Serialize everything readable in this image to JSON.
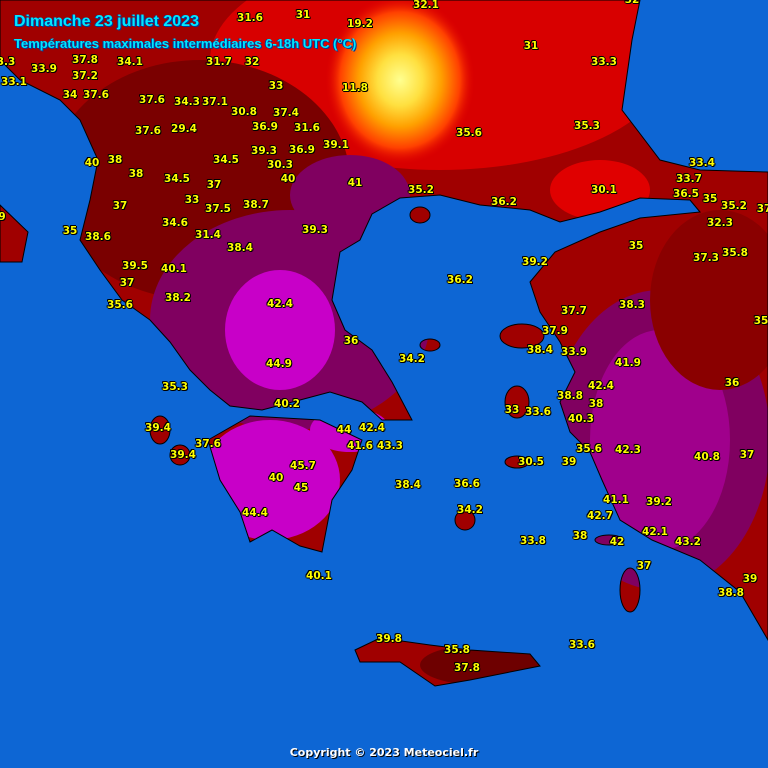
{
  "header": {
    "title": "Dimanche 23 juillet 2023",
    "subtitle": "Températures maximales intermédiaires 6-18h UTC (°C)"
  },
  "footer": {
    "copyright": "Copyright © 2023 Meteociel.fr"
  },
  "colors": {
    "sea": "#0d66d4",
    "land_base": "#a00000",
    "land_hot": "#6e0000",
    "very_hot": "#800060",
    "extreme": "#c800c8",
    "cooler_red": "#e00000",
    "cool_yellow": "#ffe040",
    "label_text": "#ffff00",
    "title_text": "#00e8ff"
  },
  "labels": [
    "31.6",
    "31",
    "19.2",
    "34.1",
    "3.3",
    "33.1",
    "32",
    "31.7",
    "33.9",
    "37.8",
    "37.2",
    "11.8",
    "33",
    "34",
    "37.6",
    "37.6",
    "34.3",
    "37.1",
    "30.8",
    "37.4",
    "36.9",
    "31.6",
    "37.6",
    "29.4",
    "39.1",
    "39.3",
    "36.9",
    "34.5",
    "30.3",
    "40",
    "38",
    "40",
    "41",
    "38",
    "34.5",
    "37",
    "37",
    "33",
    "37.5",
    "38.7",
    "34.6",
    "35",
    "38.6",
    "31.4",
    "39.3",
    "38.4",
    "9",
    "32.1",
    "32",
    "31",
    "33.3",
    "35.6",
    "35.3",
    "33.4",
    "33.7",
    "30.1",
    "36.5",
    "35",
    "35.2",
    "36.2",
    "35.2",
    "37",
    "32.3",
    "35",
    "37.3",
    "35.8",
    "39.5",
    "40.1",
    "37",
    "38.2",
    "35.6",
    "42.4",
    "36",
    "44.9",
    "35.3",
    "40.2",
    "39.4",
    "44",
    "42.4",
    "41.6",
    "43.3",
    "37.6",
    "39.4",
    "45.7",
    "40",
    "45",
    "44.4",
    "40.1",
    "39.2",
    "36.2",
    "37.7",
    "38.3",
    "35.",
    "37.9",
    "38.4",
    "33.9",
    "34.2",
    "41.9",
    "36",
    "42.4",
    "38.8",
    "38",
    "33",
    "33.6",
    "40.3",
    "35.6",
    "42.3",
    "40.8",
    "37",
    "30.5",
    "39",
    "38.4",
    "36.6",
    "41.1",
    "39.2",
    "42.7",
    "34.2",
    "42.1",
    "38",
    "42",
    "33.8",
    "43.2",
    "37",
    "39",
    "38.8",
    "39.8",
    "35.8",
    "37.8",
    "33.6"
  ]
}
